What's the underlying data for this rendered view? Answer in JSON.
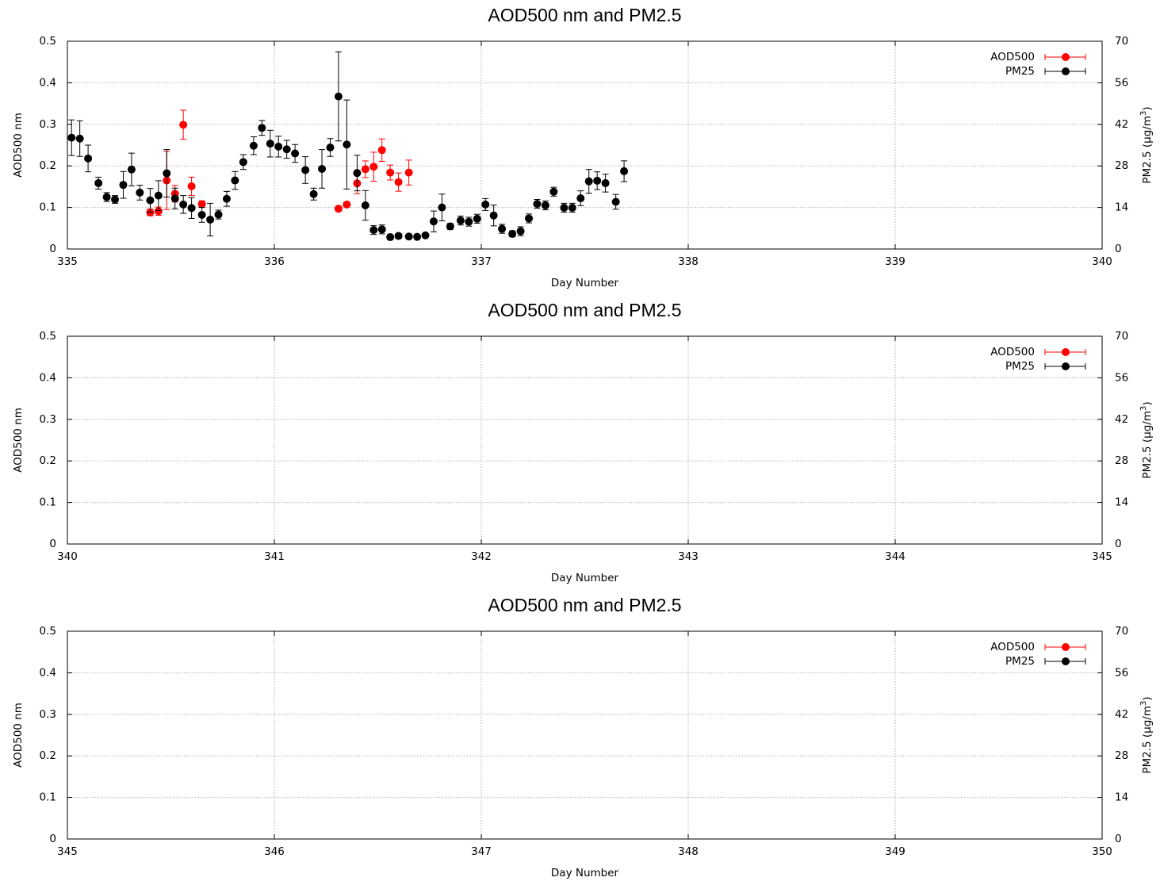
{
  "chart_data": [
    {
      "type": "scatter",
      "title": "AOD500 nm and PM2.5",
      "xlabel": "Day Number",
      "ylabel": "AOD500 nm",
      "y2label_main": "PM2.5 (μg/m",
      "y2label_sup": "3",
      "y2label_tail": ")",
      "xlim": [
        335,
        340
      ],
      "ylim": [
        0,
        0.5
      ],
      "y2lim": [
        0,
        70
      ],
      "xticks": [
        "335",
        "336",
        "337",
        "338",
        "339",
        "340"
      ],
      "yticks": [
        "0",
        "0.1",
        "0.2",
        "0.3",
        "0.4",
        "0.5"
      ],
      "y2ticks": [
        "0",
        "14",
        "28",
        "42",
        "56",
        "70"
      ],
      "grid": true,
      "legend_position": "top-right",
      "series": [
        {
          "name": "AOD500",
          "color": "#ff0000",
          "axis": "left",
          "points": [
            [
              335.4,
              0.088,
              0.008
            ],
            [
              335.44,
              0.091,
              0.01
            ],
            [
              335.48,
              0.165,
              0.07
            ],
            [
              335.52,
              0.133,
              0.02
            ],
            [
              335.56,
              0.299,
              0.035
            ],
            [
              335.6,
              0.151,
              0.022
            ],
            [
              335.65,
              0.108,
              0.008
            ],
            [
              336.31,
              0.097,
              0.006
            ],
            [
              336.35,
              0.107,
              0.006
            ],
            [
              336.4,
              0.158,
              0.025
            ],
            [
              336.44,
              0.192,
              0.02
            ],
            [
              336.48,
              0.198,
              0.035
            ],
            [
              336.52,
              0.238,
              0.027
            ],
            [
              336.56,
              0.184,
              0.018
            ],
            [
              336.6,
              0.161,
              0.022
            ],
            [
              336.65,
              0.184,
              0.03
            ]
          ]
        },
        {
          "name": "PM25",
          "color": "#000000",
          "axis": "right",
          "points": [
            [
              335.02,
              37.5,
              6.0
            ],
            [
              335.06,
              37.2,
              6.0
            ],
            [
              335.1,
              30.5,
              4.5
            ],
            [
              335.15,
              22.2,
              2.0
            ],
            [
              335.19,
              17.5,
              1.5
            ],
            [
              335.23,
              16.7,
              1.3
            ],
            [
              335.27,
              21.6,
              4.5
            ],
            [
              335.31,
              26.8,
              5.5
            ],
            [
              335.35,
              19.0,
              2.5
            ],
            [
              335.4,
              16.4,
              4.0
            ],
            [
              335.44,
              18.0,
              5.0
            ],
            [
              335.48,
              25.5,
              8.0
            ],
            [
              335.52,
              17.0,
              3.5
            ],
            [
              335.56,
              15.0,
              3.0
            ],
            [
              335.6,
              13.8,
              3.5
            ],
            [
              335.65,
              11.5,
              2.5
            ],
            [
              335.69,
              9.9,
              5.5
            ],
            [
              335.73,
              11.6,
              1.5
            ],
            [
              335.77,
              16.9,
              2.5
            ],
            [
              335.81,
              23.1,
              3.0
            ],
            [
              335.85,
              29.3,
              2.5
            ],
            [
              335.9,
              34.8,
              3.0
            ],
            [
              335.94,
              40.8,
              2.5
            ],
            [
              335.98,
              35.5,
              4.5
            ],
            [
              336.02,
              34.5,
              3.5
            ],
            [
              336.06,
              33.6,
              3.0
            ],
            [
              336.1,
              32.2,
              3.0
            ],
            [
              336.15,
              26.6,
              4.5
            ],
            [
              336.19,
              18.5,
              2.0
            ],
            [
              336.23,
              27.0,
              6.5
            ],
            [
              336.27,
              34.2,
              3.0
            ],
            [
              336.31,
              51.4,
              15.0
            ],
            [
              336.35,
              35.2,
              15.0
            ],
            [
              336.4,
              25.6,
              6.0
            ],
            [
              336.44,
              14.7,
              5.0
            ],
            [
              336.48,
              6.4,
              1.5
            ],
            [
              336.52,
              6.6,
              1.5
            ],
            [
              336.56,
              4.0,
              0.8
            ],
            [
              336.6,
              4.4,
              0.8
            ],
            [
              336.65,
              4.2,
              0.6
            ],
            [
              336.69,
              4.1,
              0.6
            ],
            [
              336.73,
              4.6,
              0.6
            ],
            [
              336.77,
              9.3,
              3.5
            ],
            [
              336.81,
              14.0,
              4.5
            ],
            [
              336.85,
              7.6,
              1.0
            ],
            [
              336.9,
              9.6,
              1.5
            ],
            [
              336.94,
              9.2,
              1.5
            ],
            [
              336.98,
              10.2,
              1.5
            ],
            [
              337.02,
              15.0,
              2.0
            ],
            [
              337.06,
              11.3,
              3.5
            ],
            [
              337.1,
              6.8,
              1.5
            ],
            [
              337.15,
              5.1,
              1.0
            ],
            [
              337.19,
              6.0,
              1.5
            ],
            [
              337.23,
              10.3,
              1.5
            ],
            [
              337.27,
              15.2,
              1.5
            ],
            [
              337.31,
              14.7,
              1.5
            ],
            [
              337.35,
              19.3,
              1.5
            ],
            [
              337.4,
              13.9,
              1.5
            ],
            [
              337.44,
              13.9,
              1.5
            ],
            [
              337.48,
              17.1,
              2.5
            ],
            [
              337.52,
              22.8,
              4.0
            ],
            [
              337.56,
              23.0,
              3.0
            ],
            [
              337.6,
              22.2,
              3.0
            ],
            [
              337.65,
              15.9,
              2.5
            ],
            [
              337.69,
              26.2,
              3.5
            ]
          ]
        }
      ]
    },
    {
      "type": "scatter",
      "title": "AOD500 nm and PM2.5",
      "xlabel": "Day Number",
      "ylabel": "AOD500 nm",
      "y2label_main": "PM2.5 (μg/m",
      "y2label_sup": "3",
      "y2label_tail": ")",
      "xlim": [
        340,
        345
      ],
      "ylim": [
        0,
        0.5
      ],
      "y2lim": [
        0,
        70
      ],
      "xticks": [
        "340",
        "341",
        "342",
        "343",
        "344",
        "345"
      ],
      "yticks": [
        "0",
        "0.1",
        "0.2",
        "0.3",
        "0.4",
        "0.5"
      ],
      "y2ticks": [
        "0",
        "14",
        "28",
        "42",
        "56",
        "70"
      ],
      "grid": true,
      "legend_position": "top-right",
      "series": [
        {
          "name": "AOD500",
          "color": "#ff0000",
          "axis": "left",
          "points": []
        },
        {
          "name": "PM25",
          "color": "#000000",
          "axis": "right",
          "points": []
        }
      ]
    },
    {
      "type": "scatter",
      "title": "AOD500 nm and PM2.5",
      "xlabel": "Day Number",
      "ylabel": "AOD500 nm",
      "y2label_main": "PM2.5 (μg/m",
      "y2label_sup": "3",
      "y2label_tail": ")",
      "xlim": [
        345,
        350
      ],
      "ylim": [
        0,
        0.5
      ],
      "y2lim": [
        0,
        70
      ],
      "xticks": [
        "345",
        "346",
        "347",
        "348",
        "349",
        "350"
      ],
      "yticks": [
        "0",
        "0.1",
        "0.2",
        "0.3",
        "0.4",
        "0.5"
      ],
      "y2ticks": [
        "0",
        "14",
        "28",
        "42",
        "56",
        "70"
      ],
      "grid": true,
      "legend_position": "top-right",
      "series": [
        {
          "name": "AOD500",
          "color": "#ff0000",
          "axis": "left",
          "points": []
        },
        {
          "name": "PM25",
          "color": "#000000",
          "axis": "right",
          "points": []
        }
      ]
    }
  ]
}
